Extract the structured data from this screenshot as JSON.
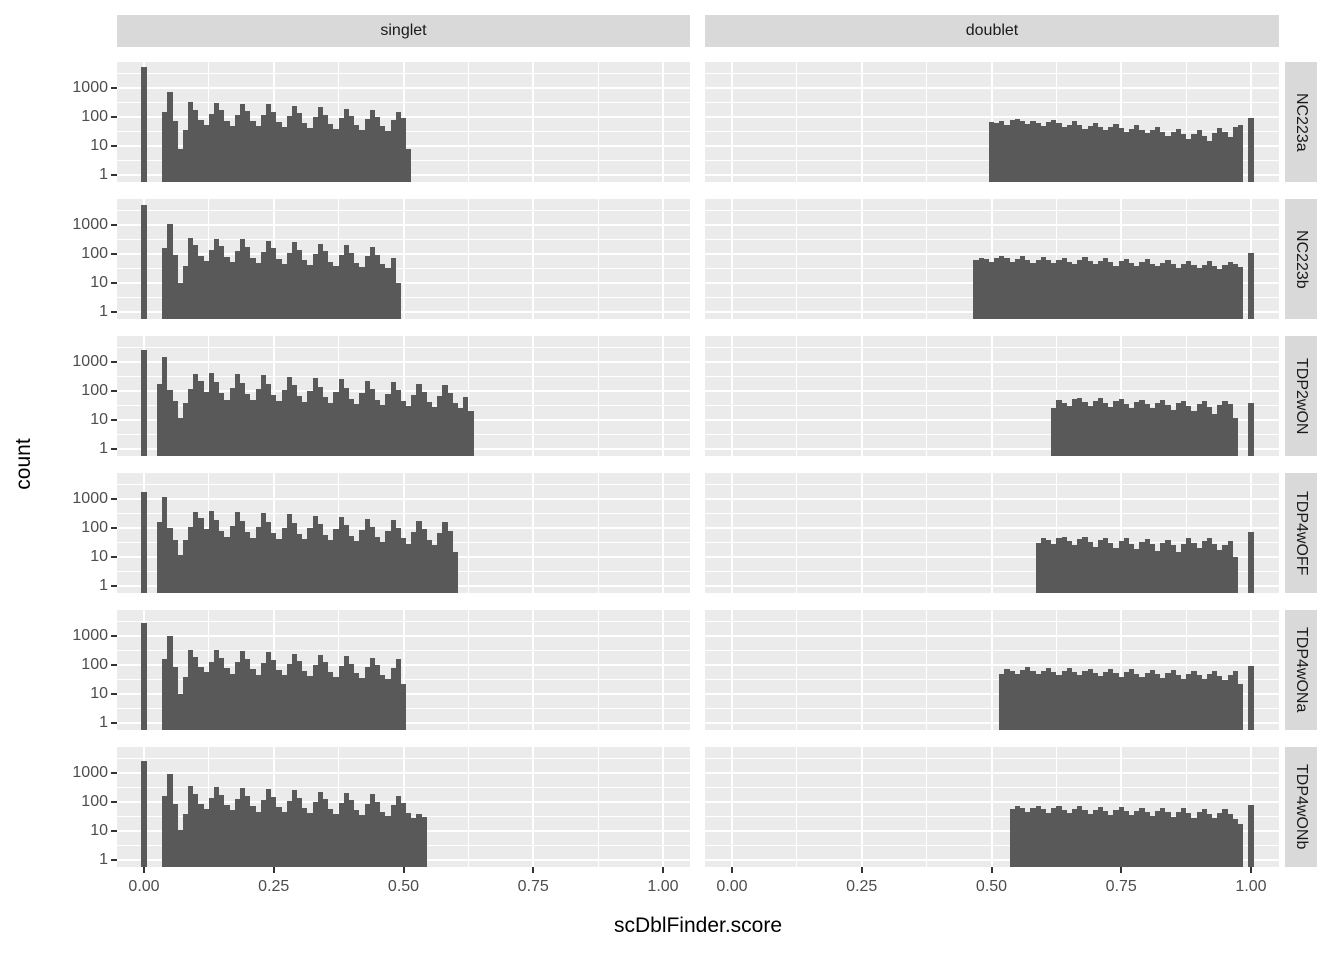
{
  "chart_data": {
    "type": "bar",
    "subtype": "faceted-histogram-log-y",
    "title": "",
    "xlabel": "scDblFinder.score",
    "ylabel": "count",
    "y_scale": "log10",
    "grid": true,
    "legend": "none",
    "x_tick_labels": [
      "0.00",
      "0.25",
      "0.50",
      "0.75",
      "1.00"
    ],
    "x_tick_values": [
      0,
      0.25,
      0.5,
      0.75,
      1.0
    ],
    "y_tick_labels": [
      "1000",
      "100",
      "10",
      "1"
    ],
    "y_tick_values": [
      1000,
      100,
      10,
      1
    ],
    "xlim": [
      -0.052,
      1.052
    ],
    "ylim_log10": [
      -0.24,
      3.9
    ],
    "facet_cols": [
      "singlet",
      "doublet"
    ],
    "facet_rows": [
      "NC223a",
      "NC223b",
      "TDP2wON",
      "TDP4wOFF",
      "TDP4wONa",
      "TDP4wONb"
    ],
    "binwidth": 0.01,
    "panels": [
      {
        "row": "NC223a",
        "col": "singlet",
        "segments": [
          {
            "start": 0.0,
            "counts": [
              5500
            ]
          },
          {
            "start": 0.04,
            "counts": [
              150,
              700,
              75,
              8,
              35,
              330,
              180,
              80,
              55,
              130,
              310,
              170,
              75,
              50,
              120,
              290,
              160,
              70,
              48,
              115,
              270,
              150,
              68,
              46,
              110,
              240,
              135,
              62,
              42,
              100,
              215,
              120,
              58,
              40,
              92,
              190,
              110,
              52,
              36,
              85,
              170,
              100,
              48,
              33,
              78,
              150,
              90,
              8
            ]
          }
        ]
      },
      {
        "row": "NC223a",
        "col": "doublet",
        "segments": [
          {
            "start": 0.5,
            "counts": [
              65,
              60,
              72,
              55,
              80,
              85,
              70,
              58,
              75,
              62,
              50,
              68,
              80,
              60,
              45,
              55,
              72,
              52,
              40,
              50,
              62,
              46,
              35,
              46,
              56,
              42,
              30,
              40,
              52,
              36,
              28,
              36,
              46,
              30,
              22,
              30,
              40,
              25,
              18,
              26,
              36,
              22,
              15,
              28,
              42,
              30,
              20,
              46,
              52
            ]
          },
          {
            "start": 1.0,
            "counts": [
              95
            ]
          }
        ]
      },
      {
        "row": "NC223b",
        "col": "singlet",
        "segments": [
          {
            "start": 0.0,
            "counts": [
              5000
            ]
          },
          {
            "start": 0.04,
            "counts": [
              160,
              1100,
              90,
              10,
              40,
              360,
              200,
              85,
              58,
              140,
              340,
              185,
              78,
              52,
              128,
              320,
              170,
              72,
              48,
              118,
              290,
              155,
              66,
              45,
              108,
              260,
              140,
              60,
              42,
              98,
              230,
              125,
              55,
              38,
              90,
              200,
              110,
              50,
              35,
              82,
              175,
              95,
              45,
              32,
              75,
              10
            ]
          }
        ]
      },
      {
        "row": "NC223b",
        "col": "doublet",
        "segments": [
          {
            "start": 0.47,
            "counts": [
              60,
              75,
              65,
              52,
              70,
              88,
              70,
              55,
              66,
              82,
              64,
              50,
              62,
              76,
              60,
              48,
              64,
              72,
              55,
              45,
              60,
              76,
              56,
              44,
              56,
              70,
              52,
              40,
              56,
              66,
              50,
              40,
              52,
              66,
              46,
              38,
              48,
              60,
              44,
              34,
              46,
              58,
              42,
              32,
              42,
              56,
              40,
              30,
              42,
              52,
              45,
              35
            ]
          },
          {
            "start": 1.0,
            "counts": [
              110
            ]
          }
        ]
      },
      {
        "row": "TDP2wON",
        "col": "singlet",
        "segments": [
          {
            "start": 0.0,
            "counts": [
              2600
            ]
          },
          {
            "start": 0.03,
            "counts": [
              170,
              1500,
              110,
              45,
              12,
              40,
              120,
              380,
              230,
              95,
              430,
              200,
              82,
              50,
              125,
              390,
              185,
              76,
              48,
              118,
              350,
              170,
              70,
              45,
              110,
              310,
              155,
              65,
              42,
              102,
              280,
              140,
              60,
              40,
              95,
              250,
              128,
              55,
              37,
              88,
              225,
              115,
              50,
              34,
              80,
              200,
              105,
              46,
              31,
              74,
              180,
              95,
              42,
              28,
              68,
              160,
              85,
              38,
              25,
              60,
              20
            ]
          }
        ]
      },
      {
        "row": "TDP2wON",
        "col": "doublet",
        "segments": [
          {
            "start": 0.62,
            "counts": [
              25,
              48,
              40,
              30,
              52,
              56,
              42,
              30,
              46,
              56,
              38,
              28,
              44,
              52,
              36,
              26,
              42,
              50,
              35,
              25,
              40,
              48,
              33,
              22,
              38,
              46,
              30,
              20,
              36,
              45,
              28,
              16,
              32,
              46,
              35,
              12
            ]
          },
          {
            "start": 1.0,
            "counts": [
              40
            ]
          }
        ]
      },
      {
        "row": "TDP4wOFF",
        "col": "singlet",
        "segments": [
          {
            "start": 0.0,
            "counts": [
              1800
            ]
          },
          {
            "start": 0.03,
            "counts": [
              165,
              1200,
              100,
              40,
              12,
              38,
              110,
              360,
              215,
              90,
              400,
              190,
              78,
              48,
              120,
              370,
              175,
              72,
              46,
              112,
              330,
              160,
              66,
              43,
              104,
              295,
              148,
              62,
              41,
              98,
              265,
              135,
              58,
              38,
              92,
              238,
              122,
              52,
              35,
              85,
              212,
              110,
              48,
              32,
              78,
              190,
              100,
              44,
              29,
              72,
              170,
              90,
              40,
              26,
              65,
              155,
              80,
              15
            ]
          }
        ]
      },
      {
        "row": "TDP4wOFF",
        "col": "doublet",
        "segments": [
          {
            "start": 0.59,
            "counts": [
              30,
              46,
              38,
              28,
              44,
              50,
              36,
              26,
              42,
              48,
              34,
              23,
              40,
              46,
              31,
              21,
              36,
              44,
              29,
              19,
              33,
              42,
              27,
              16,
              31,
              40,
              25,
              15,
              29,
              44,
              31,
              21,
              36,
              46,
              29,
              17,
              26,
              36,
              10
            ]
          },
          {
            "start": 1.0,
            "counts": [
              70
            ]
          }
        ]
      },
      {
        "row": "TDP4wONa",
        "col": "singlet",
        "segments": [
          {
            "start": 0.0,
            "counts": [
              2800
            ]
          },
          {
            "start": 0.04,
            "counts": [
              155,
              1000,
              85,
              10,
              38,
              340,
              190,
              82,
              56,
              132,
              320,
              175,
              76,
              50,
              122,
              300,
              162,
              70,
              47,
              114,
              275,
              150,
              66,
              44,
              106,
              248,
              138,
              61,
              41,
              99,
              222,
              125,
              56,
              38,
              91,
              198,
              112,
              51,
              35,
              84,
              178,
              100,
              46,
              32,
              76,
              160,
              22
            ]
          }
        ]
      },
      {
        "row": "TDP4wONa",
        "col": "doublet",
        "segments": [
          {
            "start": 0.52,
            "counts": [
              48,
              72,
              60,
              50,
              66,
              84,
              62,
              48,
              64,
              80,
              58,
              46,
              62,
              76,
              56,
              44,
              60,
              74,
              54,
              42,
              58,
              72,
              52,
              40,
              56,
              70,
              50,
              38,
              54,
              68,
              48,
              36,
              52,
              66,
              46,
              34,
              50,
              64,
              44,
              32,
              48,
              62,
              42,
              30,
              46,
              60,
              22
            ]
          },
          {
            "start": 1.0,
            "counts": [
              90
            ]
          }
        ]
      },
      {
        "row": "TDP4wONb",
        "col": "singlet",
        "segments": [
          {
            "start": 0.0,
            "counts": [
              2600
            ]
          },
          {
            "start": 0.04,
            "counts": [
              158,
              950,
              88,
              11,
              39,
              345,
              195,
              84,
              57,
              134,
              322,
              178,
              77,
              51,
              124,
              300,
              163,
              71,
              47,
              115,
              276,
              150,
              66,
              44,
              107,
              250,
              138,
              61,
              41,
              99,
              225,
              126,
              56,
              38,
              92,
              202,
              114,
              52,
              35,
              85,
              182,
              103,
              47,
              32,
              78,
              164,
              93,
              43,
              29,
              40,
              30
            ]
          }
        ]
      },
      {
        "row": "TDP4wONb",
        "col": "doublet",
        "segments": [
          {
            "start": 0.54,
            "counts": [
              58,
              75,
              60,
              46,
              62,
              74,
              56,
              43,
              60,
              72,
              54,
              41,
              57,
              70,
              52,
              39,
              54,
              68,
              50,
              37,
              52,
              66,
              48,
              35,
              50,
              64,
              46,
              33,
              48,
              62,
              44,
              31,
              46,
              60,
              42,
              29,
              44,
              58,
              40,
              27,
              42,
              56,
              38,
              25,
              18
            ]
          },
          {
            "start": 1.0,
            "counts": [
              80
            ]
          }
        ]
      }
    ],
    "colors": {
      "bar": "#595959",
      "panel_bg": "#ebebeb",
      "strip_bg": "#d9d9d9",
      "grid": "#ffffff",
      "axis_text": "#4d4d4d",
      "tick_mark": "#333333",
      "title_text": "#000000"
    }
  }
}
